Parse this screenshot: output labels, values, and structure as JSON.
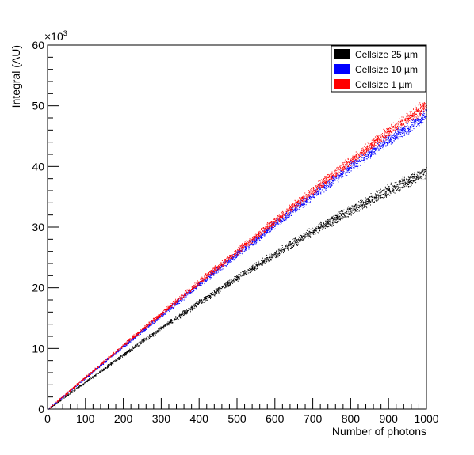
{
  "chart_data": {
    "type": "scatter",
    "xlabel": "Number of photons",
    "ylabel": "Integral (AU)",
    "y_multiplier": "×10",
    "y_multiplier_exp": "3",
    "xlim": [
      0,
      1000
    ],
    "ylim": [
      0,
      60
    ],
    "x_ticks": [
      0,
      100,
      200,
      300,
      400,
      500,
      600,
      700,
      800,
      900,
      1000
    ],
    "y_ticks": [
      0,
      10,
      20,
      30,
      40,
      50,
      60
    ],
    "legend_position": "top-right",
    "grid": false,
    "series": [
      {
        "name": "Cellsize 25 µm",
        "color": "#000000",
        "x": [
          0,
          100,
          200,
          300,
          400,
          500,
          600,
          700,
          800,
          900,
          1000
        ],
        "y": [
          0,
          4.5,
          9.0,
          13.4,
          17.6,
          21.7,
          25.6,
          29.4,
          32.8,
          36.2,
          39.0
        ]
      },
      {
        "name": "Cellsize 10 µm",
        "color": "#0000ff",
        "x": [
          0,
          100,
          200,
          300,
          400,
          500,
          600,
          700,
          800,
          900,
          1000
        ],
        "y": [
          0,
          5.2,
          10.4,
          15.5,
          20.6,
          25.6,
          30.5,
          35.3,
          40.0,
          44.4,
          48.5
        ]
      },
      {
        "name": "Cellsize 1 µm",
        "color": "#ff0000",
        "x": [
          0,
          100,
          200,
          300,
          400,
          500,
          600,
          700,
          800,
          900,
          1000
        ],
        "y": [
          0,
          5.3,
          10.6,
          15.8,
          21.0,
          26.1,
          31.1,
          36.1,
          41.0,
          45.8,
          50.2
        ]
      }
    ]
  }
}
